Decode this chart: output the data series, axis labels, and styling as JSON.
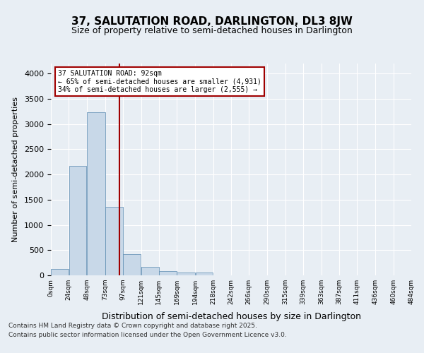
{
  "title1": "37, SALUTATION ROAD, DARLINGTON, DL3 8JW",
  "title2": "Size of property relative to semi-detached houses in Darlington",
  "xlabel": "Distribution of semi-detached houses by size in Darlington",
  "ylabel": "Number of semi-detached properties",
  "bar_color": "#c8d8e8",
  "bar_edge_color": "#5a8ab0",
  "vline_color": "#a00000",
  "vline_x": 92,
  "annotation_title": "37 SALUTATION ROAD: 92sqm",
  "annotation_line1": "← 65% of semi-detached houses are smaller (4,931)",
  "annotation_line2": "34% of semi-detached houses are larger (2,555) →",
  "footer1": "Contains HM Land Registry data © Crown copyright and database right 2025.",
  "footer2": "Contains public sector information licensed under the Open Government Licence v3.0.",
  "bin_edges": [
    0,
    24,
    48,
    73,
    97,
    121,
    145,
    169,
    194,
    218,
    242,
    266,
    290,
    315,
    339,
    363,
    387,
    411,
    436,
    460,
    484
  ],
  "bin_labels": [
    "0sqm",
    "24sqm",
    "48sqm",
    "73sqm",
    "97sqm",
    "121sqm",
    "145sqm",
    "169sqm",
    "194sqm",
    "218sqm",
    "242sqm",
    "266sqm",
    "290sqm",
    "315sqm",
    "339sqm",
    "363sqm",
    "387sqm",
    "411sqm",
    "436sqm",
    "460sqm",
    "484sqm"
  ],
  "counts": [
    120,
    2170,
    3240,
    1360,
    420,
    170,
    90,
    60,
    50,
    0,
    0,
    0,
    0,
    0,
    0,
    0,
    0,
    0,
    0,
    0
  ],
  "ylim": [
    0,
    4200
  ],
  "yticks": [
    0,
    500,
    1000,
    1500,
    2000,
    2500,
    3000,
    3500,
    4000
  ],
  "background_color": "#e8eef4",
  "plot_bg_color": "#e8eef4"
}
